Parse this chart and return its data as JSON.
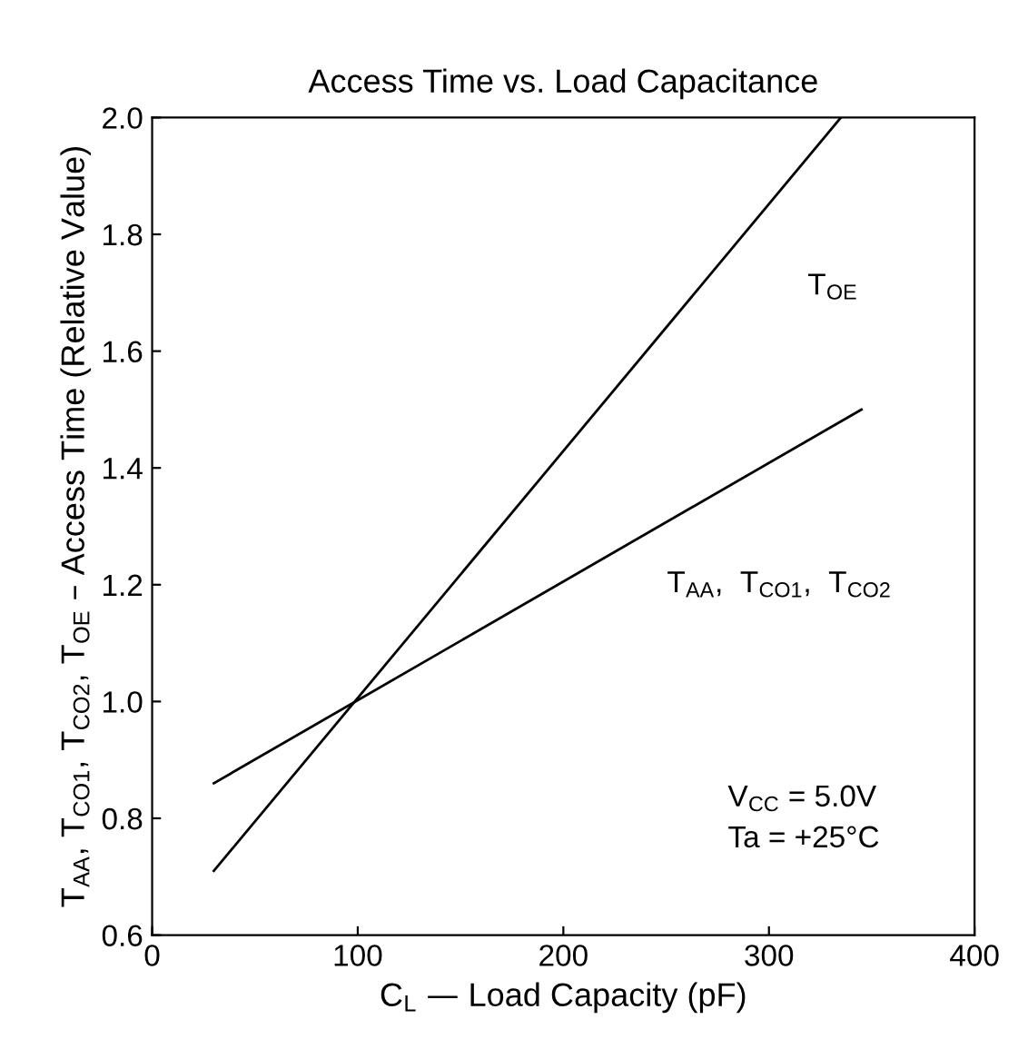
{
  "chart_data": {
    "type": "line",
    "title": "Access Time vs. Load Capacitance",
    "xlabel": "C$_{L}$ — Load Capacity (pF)",
    "ylabel": "T$_{AA}$, T$_{CO1}$, T$_{CO2}$, T$_{OE}$ – Access Time (Relative Value)",
    "series": [
      {
        "name": "T$_{OE}$",
        "color": "#000000",
        "x": [
          30,
          335
        ],
        "values": [
          0.71,
          2.0
        ]
      },
      {
        "name": "T$_{AA}$,  T$_{CO1}$,  T$_{CO2}$",
        "color": "#000000",
        "x": [
          30,
          345
        ],
        "values": [
          0.86,
          1.5
        ]
      }
    ],
    "annotations": [
      "V$_{CC}$ = 5.0V",
      "Ta = +25°C"
    ],
    "xlim": [
      0,
      400
    ],
    "xticks": [
      0,
      100,
      200,
      300,
      400
    ],
    "ylim": [
      0.6,
      2.0
    ],
    "yticks": [
      0.6,
      0.8,
      {
        "value": 1,
        "label": "1.0"
      },
      1.2,
      1.4,
      1.6,
      1.8,
      {
        "value": 2,
        "label": "2.0"
      }
    ],
    "grid": false,
    "legend": false,
    "marker": "none",
    "line_style": "solid"
  }
}
